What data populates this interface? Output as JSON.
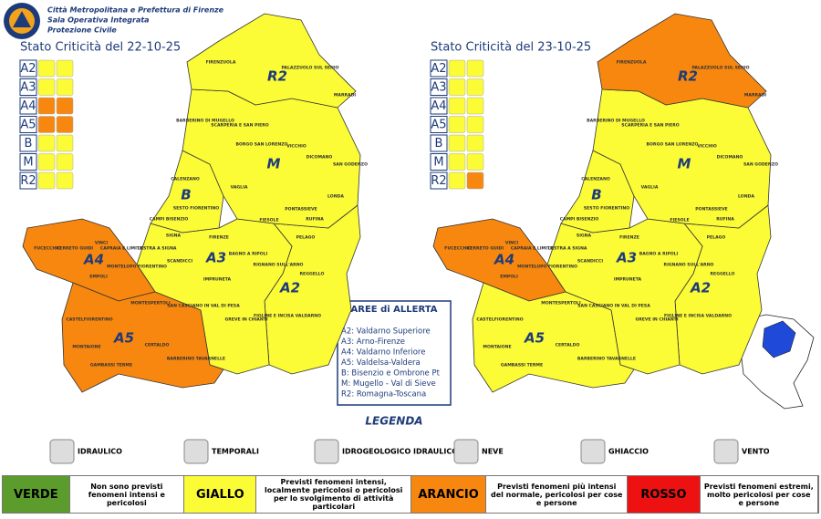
{
  "header": {
    "lines": [
      "Città Metropolitana e Prefettura di Firenze",
      "Sala Operativa Integrata",
      "Protezione Civile"
    ]
  },
  "zone_codes": [
    "A2",
    "A3",
    "A4",
    "A5",
    "B",
    "M",
    "R2"
  ],
  "maps": [
    {
      "title": "Stato Criticità del 22-10-25",
      "zone_colors": [
        "#fbfb36",
        "#fbfb36",
        "#f7870f",
        "#f7870f",
        "#fbfb36",
        "#fbfb36",
        "#fbfb36"
      ],
      "icon_colors": [
        [
          "#fbfb36",
          "#fbfb36"
        ],
        [
          "#fbfb36",
          "#fbfb36"
        ],
        [
          "#f7870f",
          "#f7870f"
        ],
        [
          "#f7870f",
          "#f7870f"
        ],
        [
          "#fbfb36",
          "#fbfb36"
        ],
        [
          "#fbfb36",
          "#fbfb36"
        ],
        [
          "#fbfb36",
          "#fbfb36"
        ]
      ]
    },
    {
      "title": "Stato Criticità del 23-10-25",
      "zone_colors": [
        "#fbfb36",
        "#fbfb36",
        "#f7870f",
        "#fbfb36",
        "#fbfb36",
        "#fbfb36",
        "#f7870f"
      ],
      "icon_colors": [
        [
          "#fbfb36",
          "#fbfb36"
        ],
        [
          "#fbfb36",
          "#fbfb36"
        ],
        [
          "#fbfb36",
          "#fbfb36"
        ],
        [
          "#fbfb36",
          "#fbfb36"
        ],
        [
          "#fbfb36",
          "#fbfb36"
        ],
        [
          "#fbfb36",
          "#fbfb36"
        ],
        [
          "#fbfb36",
          "#f7870f"
        ]
      ]
    }
  ],
  "municipalities": [
    "FIRENZUOLA",
    "PALAZZUOLO SUL SENIO",
    "MARRADI",
    "BARBERINO DI MUGELLO",
    "SCARPERIA E SAN PIERO",
    "BORGO SAN LORENZO",
    "VICCHIO",
    "DICOMANO",
    "SAN GODENZO",
    "CALENZANO",
    "VAGLIA",
    "LONDA",
    "CAMPI BISENZIO",
    "SESTO FIORENTINO",
    "FIESOLE",
    "PONTASSIEVE",
    "RUFINA",
    "LASTRA A SIGNA",
    "SIGNA",
    "FIRENZE",
    "SCANDICCI",
    "BAGNO A RIPOLI",
    "RIGNANO SULL'ARNO",
    "PELAGO",
    "FUCECCHIO",
    "CERRETO GUIDI",
    "VINCI",
    "CAPRAIA E LIMITE",
    "MONTELUPO FIORENTINO",
    "EMPOLI",
    "IMPRUNETA",
    "SAN CASCIANO IN VAL DI PESA",
    "GREVE IN CHIANTI",
    "FIGLINE E INCISA VALDARNO",
    "REGGELLO",
    "MONTESPERTOLI",
    "CASTELFIORENTINO",
    "MONTAIONE",
    "GAMBASSI TERME",
    "CERTALDO",
    "BARBERINO TAVARNELLE"
  ],
  "areas": {
    "title": "AREE di ALLERTA",
    "items": [
      "A2: Valdarno Superiore",
      "A3: Arno-Firenze",
      "A4: Valdarno Inferiore",
      "A5: Valdelsa-Valdera",
      "B: Bisenzio e Ombrone Pt",
      "M: Mugello - Val di Sieve",
      "R2: Romagna-Toscana"
    ]
  },
  "legend": {
    "title": "LEGENDA",
    "icons": [
      "IDRAULICO",
      "TEMPORALI",
      "IDROGEOLOGICO IDRAULICO",
      "NEVE",
      "GHIACCIO",
      "VENTO"
    ]
  },
  "scale": [
    {
      "label": "VERDE",
      "color": "#5b9c2c",
      "description": "Non sono previsti fenomeni intensi e pericolosi"
    },
    {
      "label": "GIALLO",
      "color": "#fbfb36",
      "description": "Previsti fenomeni intensi, localmente pericolosi o pericolosi per lo svolgimento di attività particolari"
    },
    {
      "label": "ARANCIO",
      "color": "#f7870f",
      "description": "Previsti fenomeni più intensi del normale, pericolosi per cose e persone"
    },
    {
      "label": "ROSSO",
      "color": "#ee1111",
      "description": "Previsti fenomeni estremi, molto pericolosi per cose e persone"
    }
  ]
}
